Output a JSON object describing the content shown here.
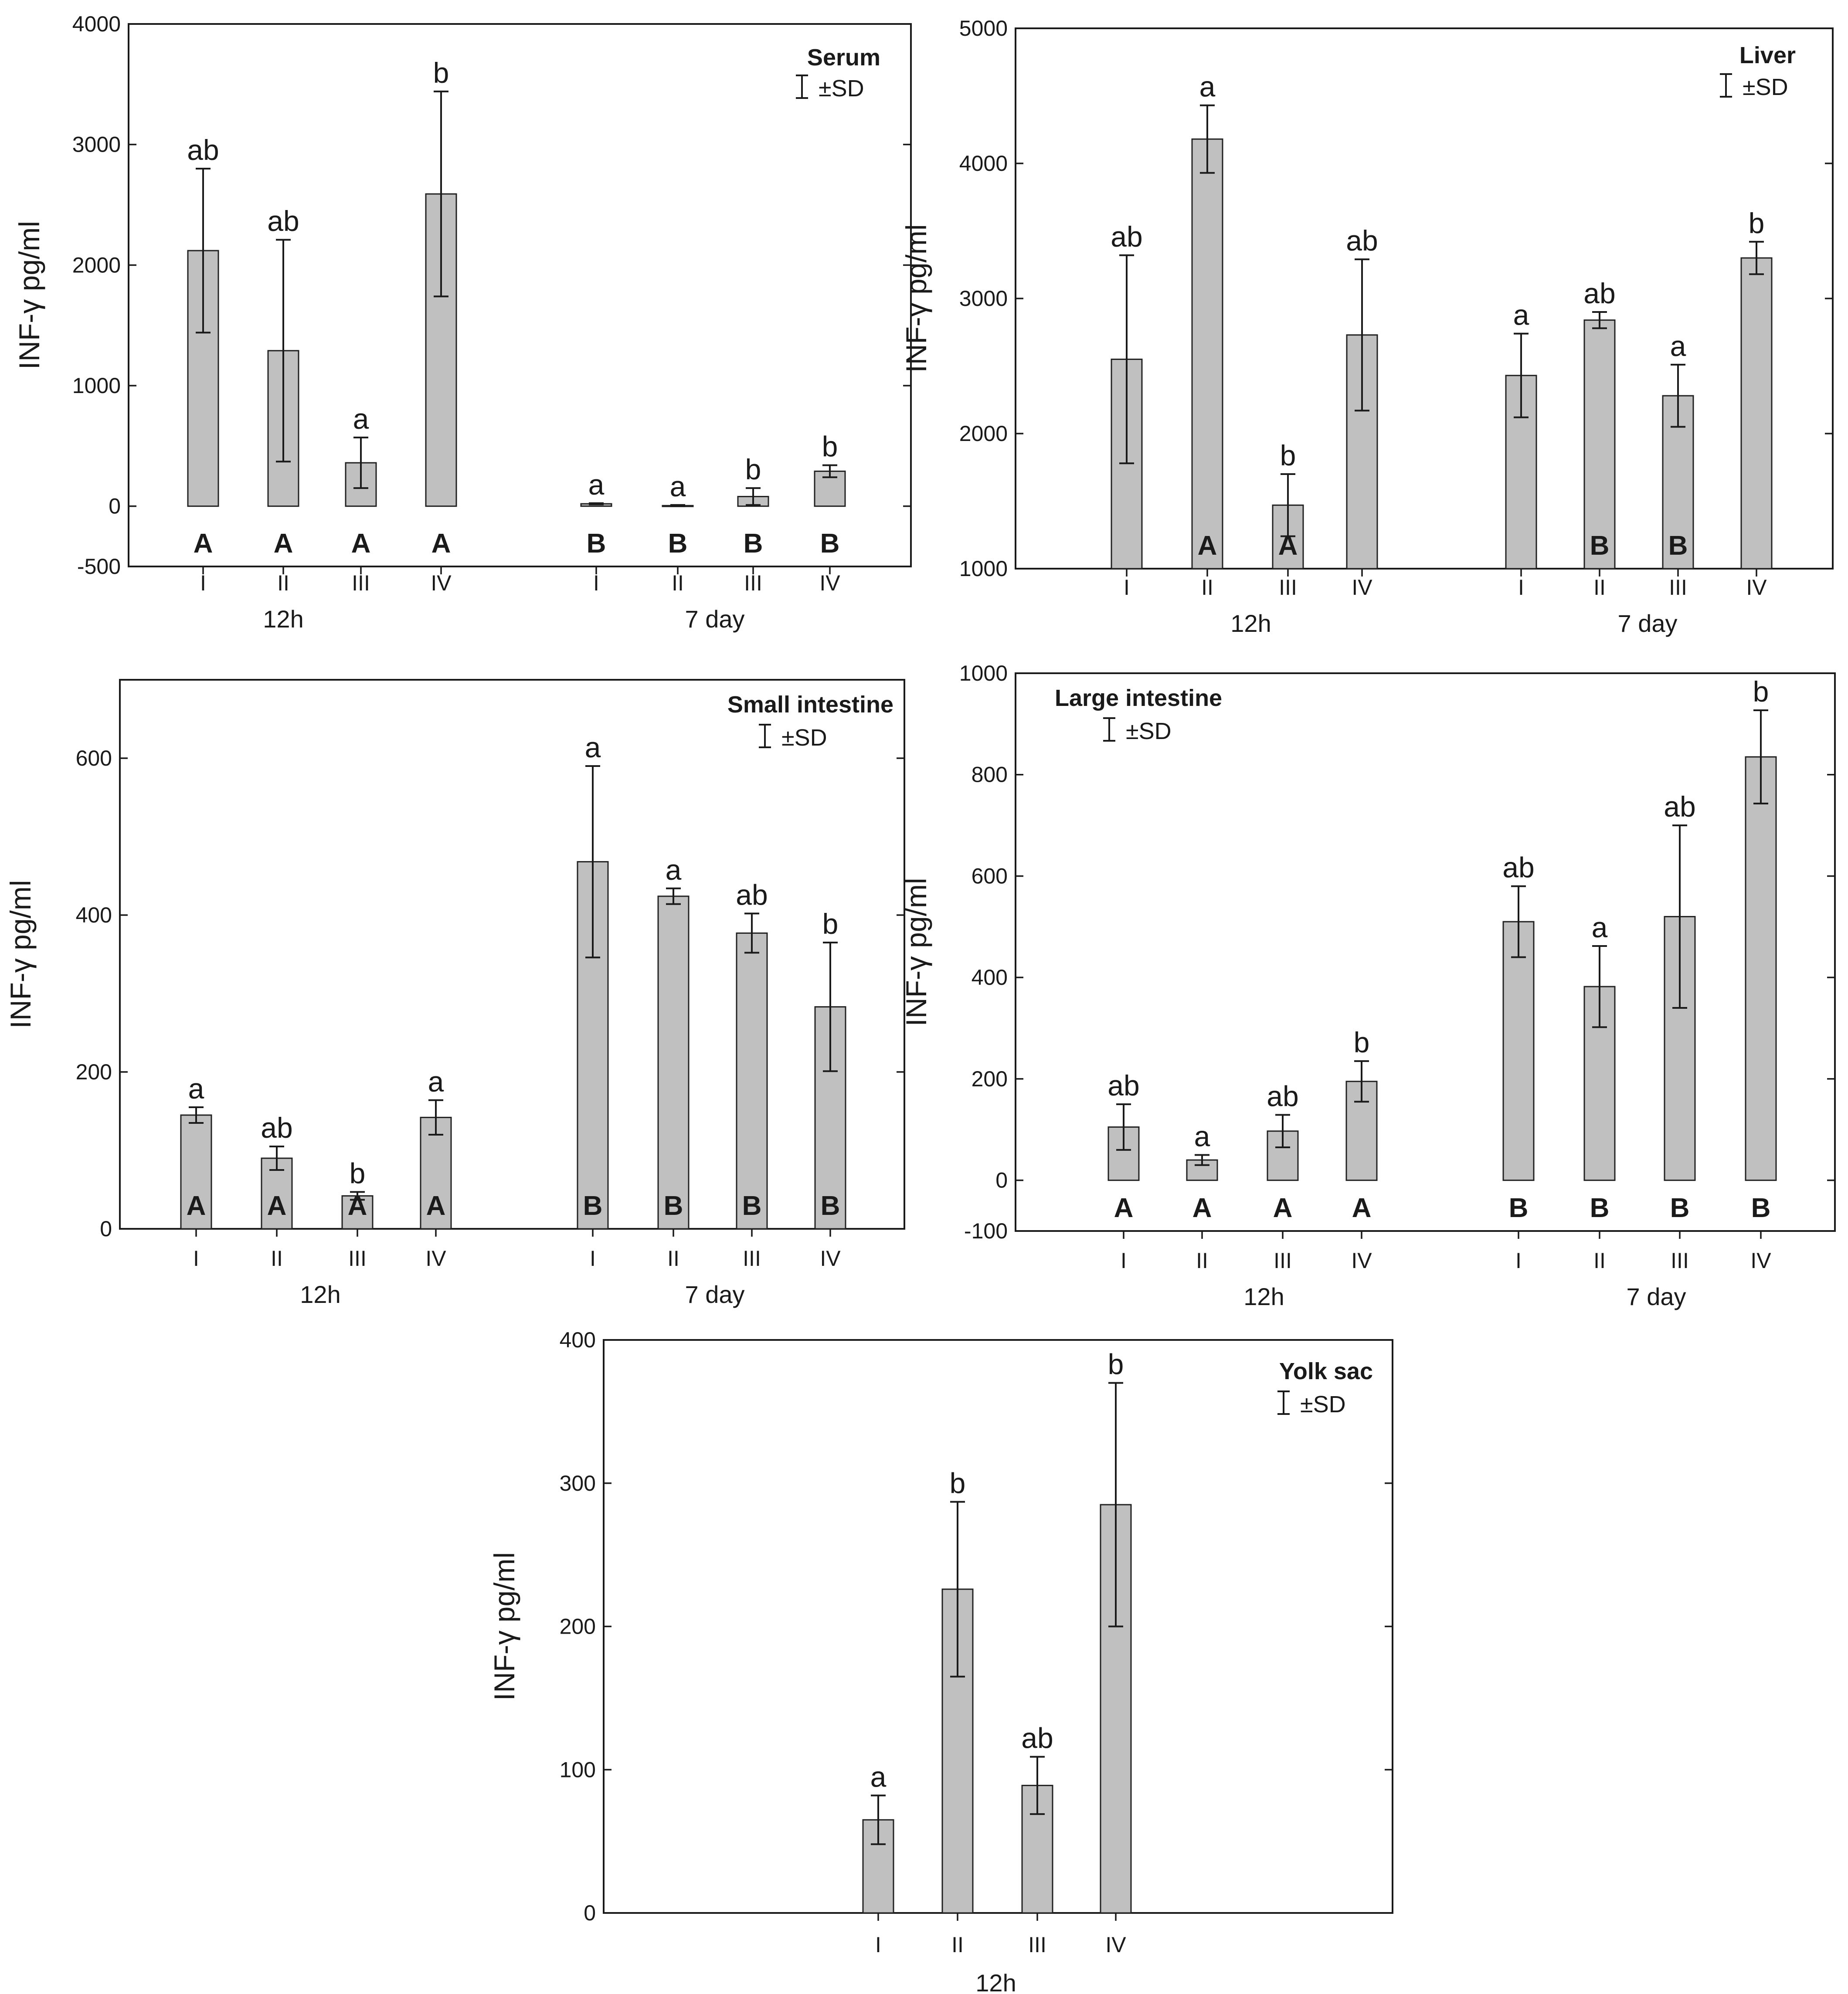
{
  "colors": {
    "bar_fill": "#c0c0c0",
    "bar_stroke": "#222222",
    "axis": "#1a1a1a",
    "background": "#ffffff"
  },
  "legend_label": "±SD",
  "chart_data": [
    {
      "type": "bar",
      "title": "Serum",
      "ylabel": "INF-γ pg/ml",
      "ylim": [
        -500,
        4000
      ],
      "yticks": [
        -500,
        0,
        1000,
        2000,
        3000,
        4000
      ],
      "legend_position": "top-right",
      "groups": [
        {
          "label": "12h",
          "bars": [
            {
              "category": "I",
              "value": 2120,
              "sd": 680,
              "letter": "ab",
              "capital": "A"
            },
            {
              "category": "II",
              "value": 1290,
              "sd": 920,
              "letter": "ab",
              "capital": "A"
            },
            {
              "category": "III",
              "value": 360,
              "sd": 210,
              "letter": "a",
              "capital": "A"
            },
            {
              "category": "IV",
              "value": 2590,
              "sd": 850,
              "letter": "b",
              "capital": "A"
            }
          ]
        },
        {
          "label": "7 day",
          "bars": [
            {
              "category": "I",
              "value": 20,
              "sd": 5,
              "letter": "a",
              "capital": "B"
            },
            {
              "category": "II",
              "value": 5,
              "sd": 5,
              "letter": "a",
              "capital": "B"
            },
            {
              "category": "III",
              "value": 80,
              "sd": 70,
              "letter": "b",
              "capital": "B"
            },
            {
              "category": "IV",
              "value": 290,
              "sd": 50,
              "letter": "b",
              "capital": "B"
            }
          ]
        }
      ]
    },
    {
      "type": "bar",
      "title": "Liver",
      "ylabel": "INF-γ pg/ml",
      "ylim": [
        1000,
        5000
      ],
      "yticks": [
        1000,
        2000,
        3000,
        4000,
        5000
      ],
      "legend_position": "top-right",
      "groups": [
        {
          "label": "12h",
          "bars": [
            {
              "category": "I",
              "value": 2550,
              "sd": 770,
              "letter": "ab",
              "capital": ""
            },
            {
              "category": "II",
              "value": 4180,
              "sd": 250,
              "letter": "a",
              "capital": "A"
            },
            {
              "category": "III",
              "value": 1470,
              "sd": 230,
              "letter": "b",
              "capital": "A"
            },
            {
              "category": "IV",
              "value": 2730,
              "sd": 560,
              "letter": "ab",
              "capital": ""
            }
          ]
        },
        {
          "label": "7 day",
          "bars": [
            {
              "category": "I",
              "value": 2430,
              "sd": 310,
              "letter": "a",
              "capital": ""
            },
            {
              "category": "II",
              "value": 2840,
              "sd": 60,
              "letter": "ab",
              "capital": "B"
            },
            {
              "category": "III",
              "value": 2280,
              "sd": 230,
              "letter": "a",
              "capital": "B"
            },
            {
              "category": "IV",
              "value": 3300,
              "sd": 120,
              "letter": "b",
              "capital": ""
            }
          ]
        }
      ]
    },
    {
      "type": "bar",
      "title": "Small intestine",
      "ylabel": "INF-γ pg/ml",
      "ylim": [
        0,
        700
      ],
      "yticks": [
        0,
        200,
        400,
        600
      ],
      "legend_position": "top-right",
      "groups": [
        {
          "label": "12h",
          "bars": [
            {
              "category": "I",
              "value": 145,
              "sd": 10,
              "letter": "a",
              "capital": "A"
            },
            {
              "category": "II",
              "value": 90,
              "sd": 15,
              "letter": "ab",
              "capital": "A"
            },
            {
              "category": "III",
              "value": 42,
              "sd": 5,
              "letter": "b",
              "capital": "A"
            },
            {
              "category": "IV",
              "value": 142,
              "sd": 22,
              "letter": "a",
              "capital": "A"
            }
          ]
        },
        {
          "label": "7 day",
          "bars": [
            {
              "category": "I",
              "value": 468,
              "sd": 122,
              "letter": "a",
              "capital": "B"
            },
            {
              "category": "II",
              "value": 424,
              "sd": 10,
              "letter": "a",
              "capital": "B"
            },
            {
              "category": "III",
              "value": 377,
              "sd": 25,
              "letter": "ab",
              "capital": "B"
            },
            {
              "category": "IV",
              "value": 283,
              "sd": 82,
              "letter": "b",
              "capital": "B"
            }
          ]
        }
      ]
    },
    {
      "type": "bar",
      "title": "Large intestine",
      "ylabel": "INF-γ pg/ml",
      "ylim": [
        -100,
        1000
      ],
      "yticks": [
        -100,
        0,
        200,
        400,
        600,
        800,
        1000
      ],
      "legend_position": "top-left",
      "groups": [
        {
          "label": "12h",
          "bars": [
            {
              "category": "I",
              "value": 105,
              "sd": 45,
              "letter": "ab",
              "capital": "A"
            },
            {
              "category": "II",
              "value": 40,
              "sd": 10,
              "letter": "a",
              "capital": "A"
            },
            {
              "category": "III",
              "value": 97,
              "sd": 32,
              "letter": "ab",
              "capital": "A"
            },
            {
              "category": "IV",
              "value": 195,
              "sd": 40,
              "letter": "b",
              "capital": "A"
            }
          ]
        },
        {
          "label": "7 day",
          "bars": [
            {
              "category": "I",
              "value": 510,
              "sd": 70,
              "letter": "ab",
              "capital": "B"
            },
            {
              "category": "II",
              "value": 382,
              "sd": 80,
              "letter": "a",
              "capital": "B"
            },
            {
              "category": "III",
              "value": 520,
              "sd": 180,
              "letter": "ab",
              "capital": "B"
            },
            {
              "category": "IV",
              "value": 835,
              "sd": 92,
              "letter": "b",
              "capital": "B"
            }
          ]
        }
      ]
    },
    {
      "type": "bar",
      "title": "Yolk sac",
      "ylabel": "INF-γ pg/ml",
      "ylim": [
        0,
        400
      ],
      "yticks": [
        0,
        100,
        200,
        300,
        400
      ],
      "legend_position": "top-right",
      "groups": [
        {
          "label": "12h",
          "bars": [
            {
              "category": "I",
              "value": 65,
              "sd": 17,
              "letter": "a",
              "capital": ""
            },
            {
              "category": "II",
              "value": 226,
              "sd": 61,
              "letter": "b",
              "capital": ""
            },
            {
              "category": "III",
              "value": 89,
              "sd": 20,
              "letter": "ab",
              "capital": ""
            },
            {
              "category": "IV",
              "value": 285,
              "sd": 85,
              "letter": "b",
              "capital": ""
            }
          ]
        }
      ]
    }
  ]
}
